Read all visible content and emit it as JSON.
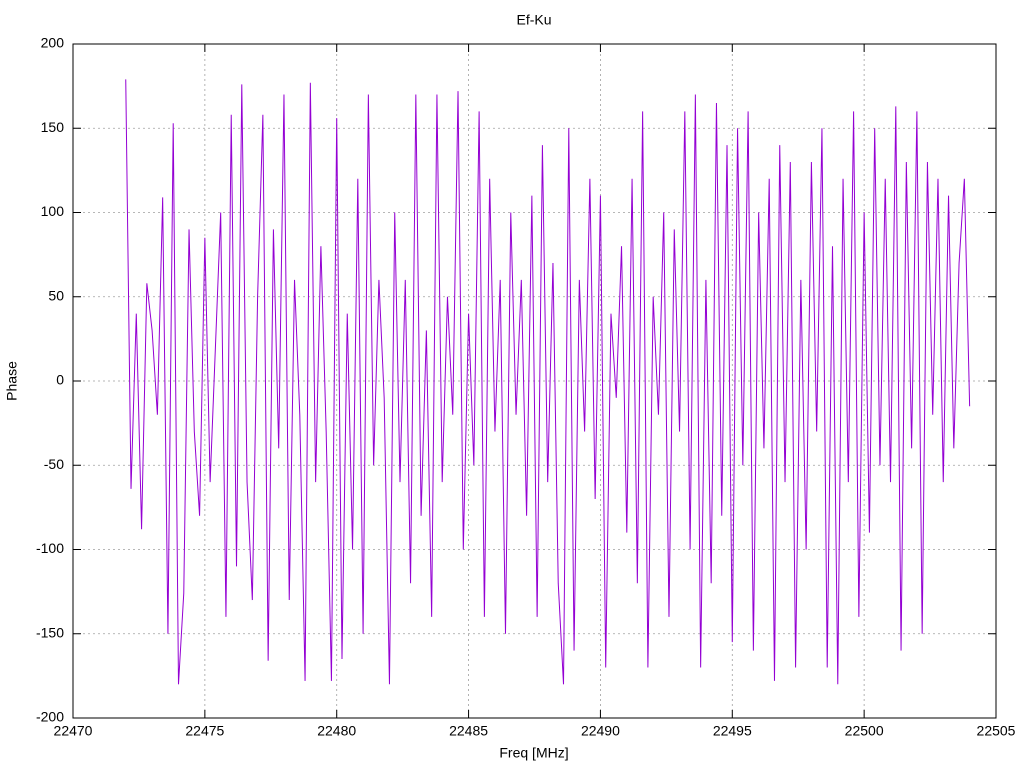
{
  "chart_data": {
    "type": "line",
    "title": "Ef-Ku",
    "x_label": "Freq [MHz]",
    "y_label": "Phase",
    "color": "#9400d3",
    "grid": true,
    "xlim": [
      22470,
      22505
    ],
    "xticks": [
      22470,
      22475,
      22480,
      22485,
      22490,
      22495,
      22500,
      22505
    ],
    "ylim": [
      -200,
      200
    ],
    "yticks": [
      -200,
      -150,
      -100,
      -50,
      0,
      50,
      100,
      150,
      200
    ],
    "x": [
      22472,
      22472.2,
      22472.4,
      22472.6,
      22472.8,
      22473,
      22473.2,
      22473.4,
      22473.6,
      22473.8,
      22474,
      22474.2,
      22474.4,
      22474.6,
      22474.8,
      22475,
      22475.2,
      22475.4,
      22475.6,
      22475.8,
      22476,
      22476.2,
      22476.4,
      22476.6,
      22476.8,
      22477,
      22477.2,
      22477.4,
      22477.6,
      22477.8,
      22478,
      22478.2,
      22478.4,
      22478.6,
      22478.8,
      22479,
      22479.2,
      22479.4,
      22479.6,
      22479.8,
      22480,
      22480.2,
      22480.4,
      22480.6,
      22480.8,
      22481,
      22481.2,
      22481.4,
      22481.6,
      22481.8,
      22482,
      22482.2,
      22482.4,
      22482.6,
      22482.8,
      22483,
      22483.2,
      22483.4,
      22483.6,
      22483.8,
      22484,
      22484.2,
      22484.4,
      22484.6,
      22484.8,
      22485,
      22485.2,
      22485.4,
      22485.6,
      22485.8,
      22486,
      22486.2,
      22486.4,
      22486.6,
      22486.8,
      22487,
      22487.2,
      22487.4,
      22487.6,
      22487.8,
      22488,
      22488.2,
      22488.4,
      22488.6,
      22488.8,
      22489,
      22489.2,
      22489.4,
      22489.6,
      22489.8,
      22490,
      22490.2,
      22490.4,
      22490.6,
      22490.8,
      22491,
      22491.2,
      22491.4,
      22491.6,
      22491.8,
      22492,
      22492.2,
      22492.4,
      22492.6,
      22492.8,
      22493,
      22493.2,
      22493.4,
      22493.6,
      22493.8,
      22494,
      22494.2,
      22494.4,
      22494.6,
      22494.8,
      22495,
      22495.2,
      22495.4,
      22495.6,
      22495.8,
      22496,
      22496.2,
      22496.4,
      22496.6,
      22496.8,
      22497,
      22497.2,
      22497.4,
      22497.6,
      22497.8,
      22498,
      22498.2,
      22498.4,
      22498.6,
      22498.8,
      22499,
      22499.2,
      22499.4,
      22499.6,
      22499.8,
      22500,
      22500.2,
      22500.4,
      22500.6,
      22500.8,
      22501,
      22501.2,
      22501.4,
      22501.6,
      22501.8,
      22502,
      22502.2,
      22502.4,
      22502.6,
      22502.8,
      22503,
      22503.2,
      22503.4,
      22503.6,
      22503.8,
      22504
    ],
    "values": [
      179,
      -64,
      40,
      -88,
      58,
      30,
      -20,
      109,
      -150,
      153,
      -180,
      -126,
      90,
      -30,
      -80,
      85,
      -60,
      20,
      100,
      -140,
      158,
      -110,
      176,
      -60,
      -130,
      50,
      158,
      -166,
      90,
      -40,
      170,
      -130,
      60,
      -20,
      -178,
      177,
      -60,
      80,
      -30,
      -178,
      156,
      -165,
      40,
      -100,
      120,
      -150,
      170,
      -50,
      60,
      -10,
      -180,
      100,
      -60,
      60,
      -120,
      170,
      -80,
      30,
      -140,
      170,
      -60,
      50,
      -20,
      172,
      -100,
      40,
      -50,
      160,
      -140,
      120,
      -30,
      60,
      -150,
      100,
      -20,
      60,
      -80,
      110,
      -140,
      140,
      -60,
      70,
      -120,
      -180,
      150,
      -160,
      60,
      -30,
      120,
      -70,
      110,
      -170,
      40,
      -10,
      80,
      -90,
      120,
      -120,
      160,
      -170,
      50,
      -20,
      100,
      -140,
      90,
      -30,
      160,
      -100,
      170,
      -170,
      60,
      -120,
      165,
      -80,
      140,
      -155,
      150,
      -50,
      160,
      -160,
      100,
      -40,
      120,
      -178,
      140,
      -60,
      130,
      -170,
      60,
      -100,
      130,
      -30,
      150,
      -170,
      80,
      -180,
      120,
      -60,
      160,
      -140,
      100,
      -90,
      150,
      -50,
      120,
      -60,
      163,
      -160,
      130,
      -40,
      160,
      -150,
      130,
      -20,
      120,
      -60,
      110,
      -40,
      70,
      120,
      -15
    ]
  }
}
